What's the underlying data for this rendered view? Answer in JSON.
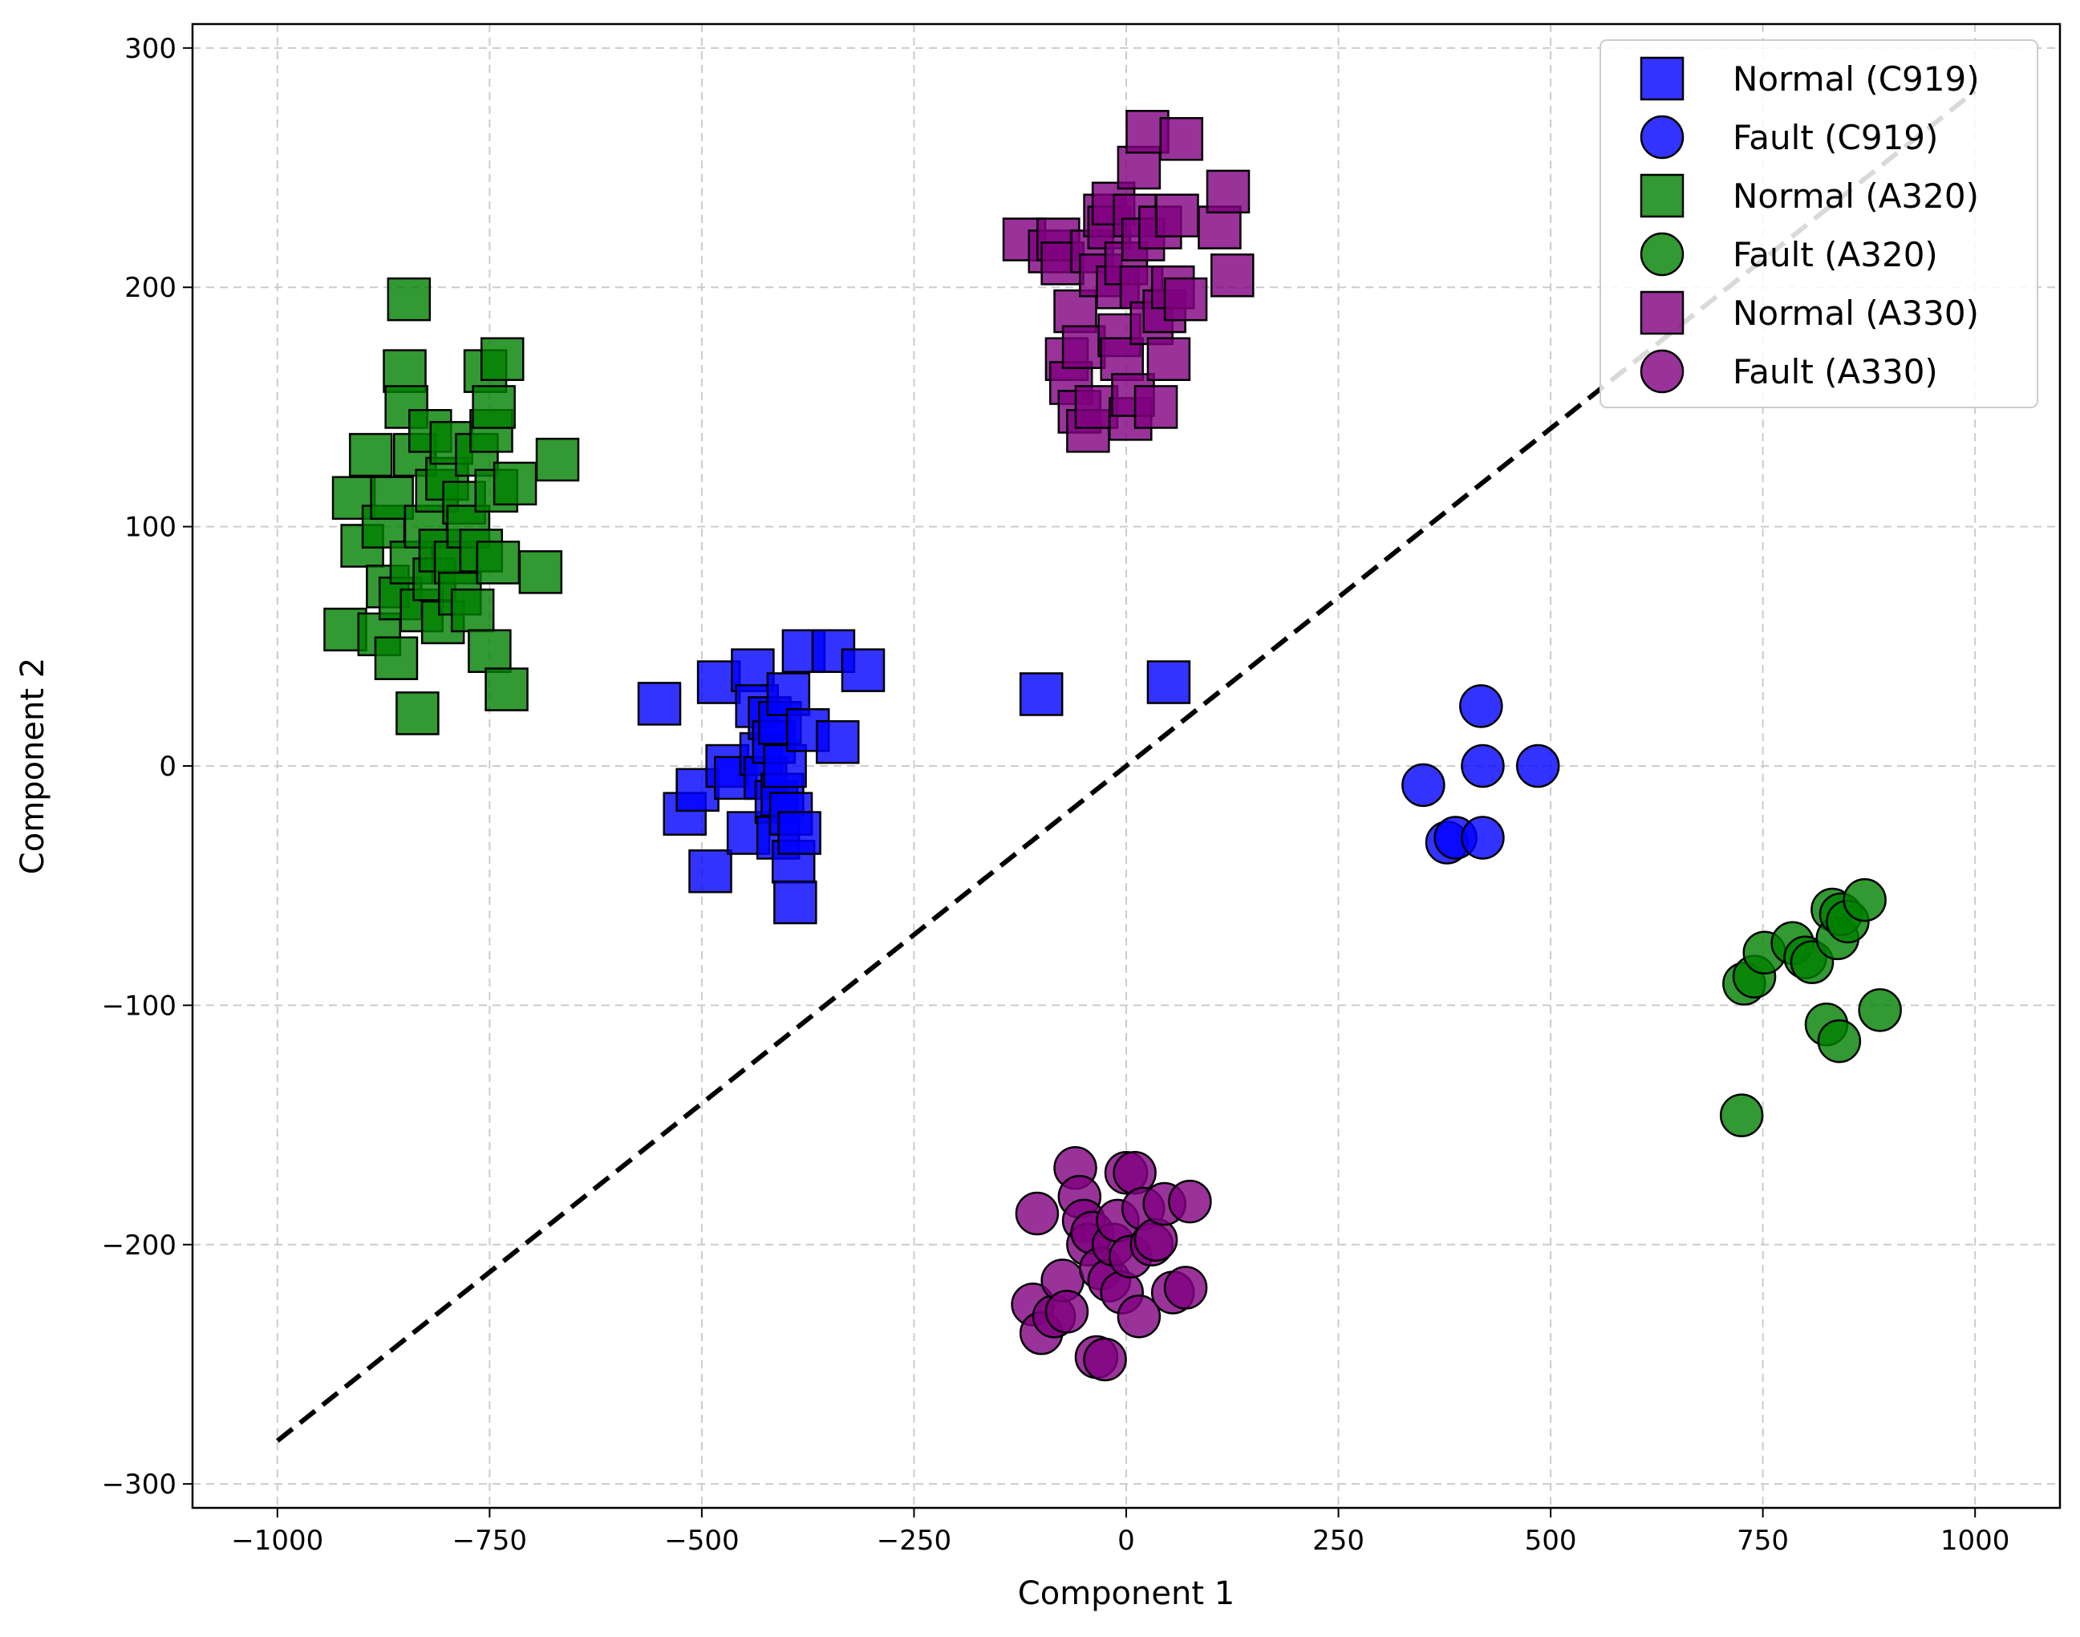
{
  "chart_data": {
    "type": "scatter",
    "title": "",
    "xlabel": "Component 1",
    "ylabel": "Component 2",
    "xlim": [
      -1100,
      1100
    ],
    "ylim": [
      -310,
      310
    ],
    "xticks": [
      -1000,
      -750,
      -500,
      -250,
      0,
      250,
      500,
      750,
      1000
    ],
    "yticks": [
      -300,
      -200,
      -100,
      0,
      100,
      200,
      300
    ],
    "xtick_labels": [
      "−1000",
      "−750",
      "−500",
      "−250",
      "0",
      "250",
      "500",
      "750",
      "1000"
    ],
    "ytick_labels": [
      "−300",
      "−200",
      "−100",
      "0",
      "100",
      "200",
      "300"
    ],
    "grid": true,
    "legend_position": "top-right",
    "boundary_line": {
      "style": "dashed",
      "color": "#000000",
      "points": [
        [
          -1000,
          -282
        ],
        [
          1000,
          282
        ]
      ]
    },
    "series": [
      {
        "name": "Normal (C919)",
        "marker": "square",
        "color": "#0000ff",
        "points": [
          [
            -550,
            26
          ],
          [
            -520,
            -20
          ],
          [
            -505,
            -10
          ],
          [
            -490,
            -44
          ],
          [
            -480,
            35
          ],
          [
            -470,
            0
          ],
          [
            -460,
            -5
          ],
          [
            -445,
            -28
          ],
          [
            -440,
            40
          ],
          [
            -435,
            25
          ],
          [
            -430,
            5
          ],
          [
            -425,
            -5
          ],
          [
            -420,
            20
          ],
          [
            -415,
            10
          ],
          [
            -412,
            -15
          ],
          [
            -410,
            -30
          ],
          [
            -408,
            18
          ],
          [
            -405,
            -12
          ],
          [
            -402,
            0
          ],
          [
            -398,
            30
          ],
          [
            -395,
            -20
          ],
          [
            -392,
            -40
          ],
          [
            -390,
            -57
          ],
          [
            -385,
            -28
          ],
          [
            -380,
            48
          ],
          [
            -375,
            15
          ],
          [
            -345,
            48
          ],
          [
            -340,
            10
          ],
          [
            -310,
            40
          ],
          [
            -100,
            30
          ],
          [
            50,
            35
          ]
        ]
      },
      {
        "name": "Fault (C919)",
        "marker": "circle",
        "color": "#0000ff",
        "points": [
          [
            350,
            -8
          ],
          [
            378,
            -32
          ],
          [
            388,
            -30
          ],
          [
            418,
            25
          ],
          [
            420,
            -30
          ],
          [
            420,
            0
          ],
          [
            485,
            0
          ]
        ]
      },
      {
        "name": "Normal (A330)",
        "marker": "square",
        "color": "#800080",
        "points": [
          [
            -120,
            220
          ],
          [
            -90,
            215
          ],
          [
            -80,
            220
          ],
          [
            -75,
            210
          ],
          [
            -70,
            170
          ],
          [
            -65,
            160
          ],
          [
            -60,
            190
          ],
          [
            -55,
            148
          ],
          [
            -50,
            175
          ],
          [
            -45,
            140
          ],
          [
            -40,
            215
          ],
          [
            -35,
            150
          ],
          [
            -30,
            205
          ],
          [
            -25,
            230
          ],
          [
            -20,
            225
          ],
          [
            -15,
            235
          ],
          [
            -10,
            200
          ],
          [
            -8,
            180
          ],
          [
            -5,
            170
          ],
          [
            0,
            210
          ],
          [
            5,
            145
          ],
          [
            8,
            155
          ],
          [
            10,
            230
          ],
          [
            15,
            250
          ],
          [
            18,
            200
          ],
          [
            20,
            220
          ],
          [
            25,
            265
          ],
          [
            30,
            185
          ],
          [
            35,
            150
          ],
          [
            40,
            225
          ],
          [
            45,
            190
          ],
          [
            50,
            170
          ],
          [
            55,
            200
          ],
          [
            60,
            230
          ],
          [
            65,
            262
          ],
          [
            70,
            195
          ],
          [
            110,
            225
          ],
          [
            120,
            240
          ],
          [
            125,
            205
          ]
        ]
      },
      {
        "name": "Fault (A330)",
        "marker": "circle",
        "color": "#800080",
        "points": [
          [
            -110,
            -225
          ],
          [
            -105,
            -187
          ],
          [
            -100,
            -237
          ],
          [
            -85,
            -230
          ],
          [
            -75,
            -215
          ],
          [
            -70,
            -228
          ],
          [
            -60,
            -168
          ],
          [
            -55,
            -180
          ],
          [
            -50,
            -190
          ],
          [
            -45,
            -200
          ],
          [
            -40,
            -195
          ],
          [
            -35,
            -247
          ],
          [
            -30,
            -210
          ],
          [
            -25,
            -248
          ],
          [
            -20,
            -215
          ],
          [
            -15,
            -200
          ],
          [
            -10,
            -190
          ],
          [
            -5,
            -220
          ],
          [
            0,
            -170
          ],
          [
            5,
            -205
          ],
          [
            10,
            -170
          ],
          [
            15,
            -230
          ],
          [
            20,
            -185
          ],
          [
            30,
            -200
          ],
          [
            35,
            -198
          ],
          [
            45,
            -183
          ],
          [
            55,
            -220
          ],
          [
            70,
            -218
          ],
          [
            75,
            -182
          ]
        ]
      },
      {
        "name": "Normal (A320)",
        "marker": "square",
        "color": "#008000",
        "points": [
          [
            -920,
            57
          ],
          [
            -910,
            112
          ],
          [
            -900,
            92
          ],
          [
            -890,
            130
          ],
          [
            -880,
            55
          ],
          [
            -875,
            100
          ],
          [
            -870,
            75
          ],
          [
            -865,
            112
          ],
          [
            -860,
            45
          ],
          [
            -855,
            70
          ],
          [
            -850,
            165
          ],
          [
            -848,
            150
          ],
          [
            -845,
            195
          ],
          [
            -842,
            85
          ],
          [
            -838,
            130
          ],
          [
            -835,
            22
          ],
          [
            -830,
            65
          ],
          [
            -825,
            100
          ],
          [
            -820,
            140
          ],
          [
            -815,
            78
          ],
          [
            -812,
            115
          ],
          [
            -808,
            90
          ],
          [
            -805,
            60
          ],
          [
            -800,
            120
          ],
          [
            -795,
            135
          ],
          [
            -790,
            85
          ],
          [
            -785,
            72
          ],
          [
            -780,
            110
          ],
          [
            -775,
            100
          ],
          [
            -770,
            65
          ],
          [
            -765,
            130
          ],
          [
            -760,
            90
          ],
          [
            -755,
            165
          ],
          [
            -750,
            48
          ],
          [
            -748,
            140
          ],
          [
            -745,
            150
          ],
          [
            -742,
            115
          ],
          [
            -740,
            85
          ],
          [
            -735,
            170
          ],
          [
            -730,
            32
          ],
          [
            -720,
            118
          ],
          [
            -690,
            81
          ],
          [
            -670,
            128
          ]
        ]
      },
      {
        "name": "Fault (A320)",
        "marker": "circle",
        "color": "#008000",
        "points": [
          [
            725,
            -146
          ],
          [
            728,
            -91
          ],
          [
            740,
            -88
          ],
          [
            752,
            -78
          ],
          [
            785,
            -74
          ],
          [
            800,
            -80
          ],
          [
            808,
            -82
          ],
          [
            825,
            -108
          ],
          [
            832,
            -60
          ],
          [
            838,
            -72
          ],
          [
            840,
            -115
          ],
          [
            842,
            -62
          ],
          [
            850,
            -65
          ],
          [
            870,
            -56
          ],
          [
            888,
            -102
          ]
        ]
      }
    ]
  }
}
